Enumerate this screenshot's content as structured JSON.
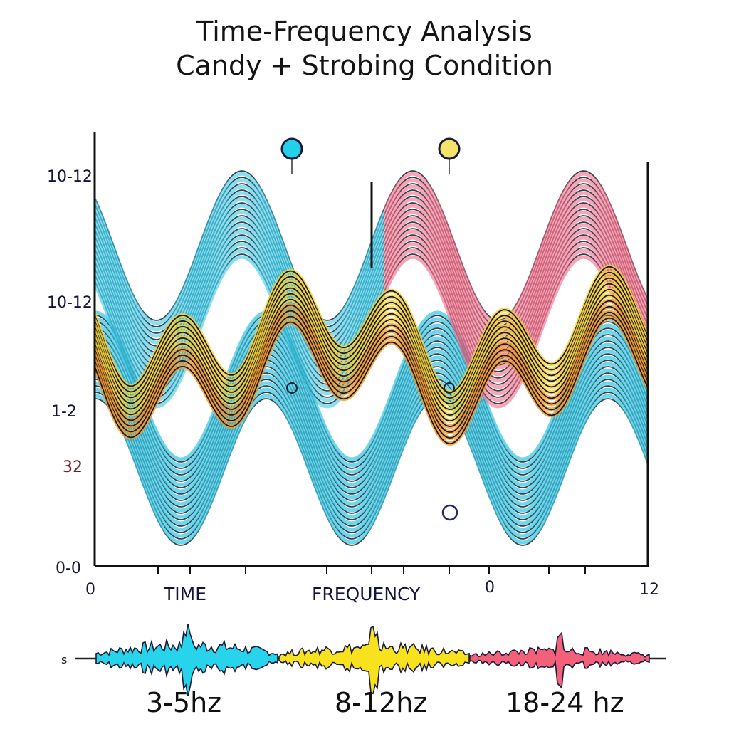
{
  "chart_data": {
    "type": "area",
    "title": "Time-Frequency Analysis",
    "subtitle": "Candy + Strobing Condition",
    "xlabel_left": "TIME",
    "xlabel_center": "FREQUENCY",
    "x_ticks": [
      "0",
      "0",
      "12"
    ],
    "y_ticks": [
      "10-12",
      "10-12",
      "1-2",
      "32",
      "0-0"
    ],
    "series_colors": {
      "cyan": "#3fc8e4",
      "yellow": "#f8d23a",
      "orange": "#f59a2c",
      "pink": "#f06a86"
    },
    "marker_colors": [
      "#22d0ea",
      "#f4e26a"
    ],
    "waveform": {
      "left_label": "s",
      "bands": [
        {
          "label": "3-5hz",
          "color": "#27d4ec"
        },
        {
          "label": "8-12hz",
          "color": "#f8e21e"
        },
        {
          "label": "18-24 hz",
          "color": "#f2607a"
        }
      ]
    }
  }
}
